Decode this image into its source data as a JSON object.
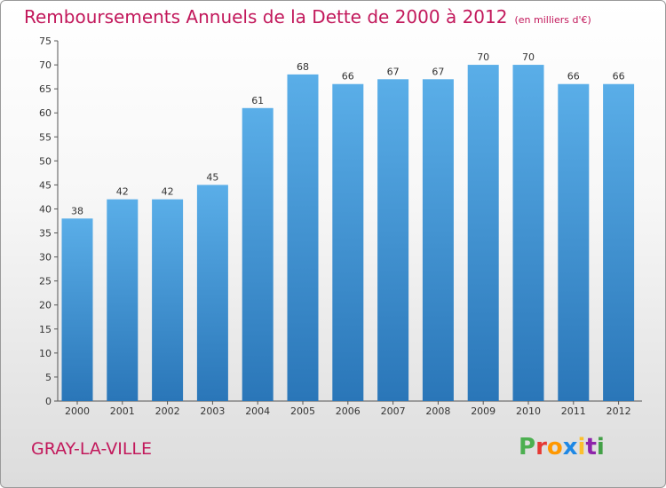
{
  "header": {
    "title": "Remboursements Annuels de la Dette de 2000 à 2012",
    "unit": "(en milliers d'€)"
  },
  "footer": {
    "city": "GRAY-LA-VILLE",
    "logo_letters": [
      "P",
      "r",
      "o",
      "x",
      "i",
      "t",
      "i"
    ]
  },
  "colors": {
    "title": "#c2185b",
    "bar_light": "#5aaee8",
    "bar_dark": "#2a76b8",
    "logo": [
      "#4caf50",
      "#e53935",
      "#ff9800",
      "#1e88e5",
      "#fbc02d",
      "#8e24aa",
      "#43a047"
    ]
  },
  "chart_data": {
    "type": "bar",
    "title": "Remboursements Annuels de la Dette de 2000 à 2012",
    "categories": [
      "2000",
      "2001",
      "2002",
      "2003",
      "2004",
      "2005",
      "2006",
      "2007",
      "2008",
      "2009",
      "2010",
      "2011",
      "2012"
    ],
    "values": [
      38,
      42,
      42,
      45,
      61,
      68,
      66,
      67,
      67,
      70,
      70,
      66,
      66
    ],
    "ylim": [
      0,
      75
    ],
    "yticks": [
      0,
      5,
      10,
      15,
      20,
      25,
      30,
      35,
      40,
      45,
      50,
      55,
      60,
      65,
      70,
      75
    ],
    "grid": false,
    "data_labels": true
  }
}
